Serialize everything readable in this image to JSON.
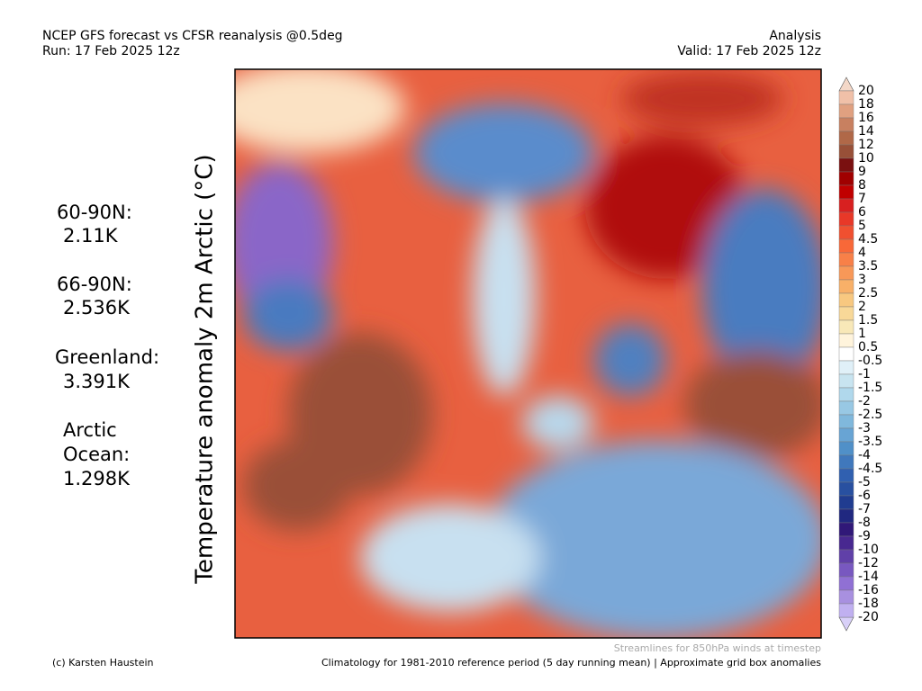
{
  "header": {
    "title": "NCEP GFS forecast vs CFSR reanalysis @0.5deg",
    "run": "Run: 17 Feb 2025 12z",
    "kind": "Analysis",
    "valid": "Valid: 17 Feb 2025 12z"
  },
  "axis_label": "Temperature anomaly 2m Arctic (°C)",
  "stats": [
    {
      "region": "60-90N:",
      "value": "2.11K"
    },
    {
      "region": "66-90N:",
      "value": "2.536K"
    },
    {
      "region": "Greenland:",
      "value": "3.391K"
    },
    {
      "region": "Arctic Ocean:",
      "region_lines": [
        "Arctic",
        "Ocean:"
      ],
      "value": "1.298K"
    }
  ],
  "colorbar": {
    "labels": [
      "20",
      "18",
      "16",
      "14",
      "12",
      "10",
      "9",
      "8",
      "7",
      "6",
      "5",
      "4.5",
      "4",
      "3.5",
      "3",
      "2.5",
      "2",
      "1.5",
      "1",
      "0.5",
      "-0.5",
      "-1",
      "-1.5",
      "-2",
      "-2.5",
      "-3",
      "-3.5",
      "-4",
      "-4.5",
      "-5",
      "-6",
      "-7",
      "-8",
      "-9",
      "-10",
      "-12",
      "-14",
      "-16",
      "-18",
      "-20"
    ],
    "colors": [
      "#f0c0a8",
      "#e0a080",
      "#c88060",
      "#b06848",
      "#985038",
      "#7a1010",
      "#a00000",
      "#c00000",
      "#d82020",
      "#e83828",
      "#f05030",
      "#f86838",
      "#f88048",
      "#f89858",
      "#f8b068",
      "#f8c880",
      "#f8d898",
      "#f8e8b8",
      "#fff4dc",
      "#ffffff",
      "#e0f0f8",
      "#c8e4f0",
      "#b0d8ec",
      "#98c8e4",
      "#80b8dc",
      "#68a4d4",
      "#5090c8",
      "#4078bc",
      "#3060b0",
      "#2850a0",
      "#203c90",
      "#202880",
      "#301878",
      "#482890",
      "#6040a8",
      "#7858c0",
      "#9070d4",
      "#a890e0",
      "#c0b0f0"
    ]
  },
  "footer": {
    "streamlines": "Streamlines for 850hPa winds at timestep",
    "credit": "(c) Karsten Haustein",
    "climatology": "Climatology for 1981-2010 reference period (5 day running mean) | Approximate grid box anomalies"
  }
}
